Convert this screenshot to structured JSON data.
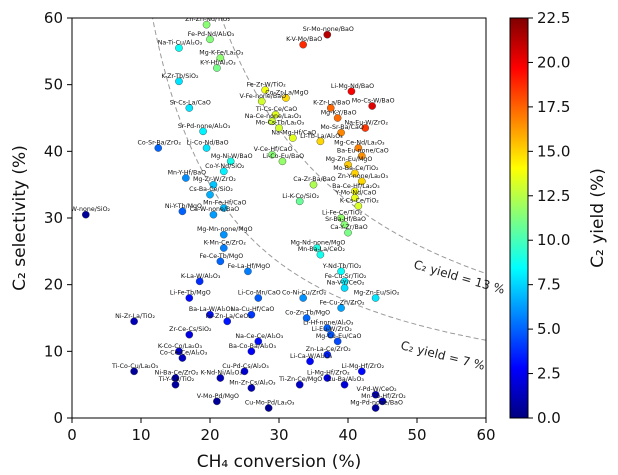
{
  "chart_data": {
    "type": "scatter",
    "xlabel": "CH₄ conversion (%)",
    "ylabel": "C₂ selectivity (%)",
    "xlim": [
      0,
      60
    ],
    "ylim": [
      0,
      60
    ],
    "x_ticks": [
      "0",
      "10",
      "20",
      "30",
      "40",
      "50",
      "60"
    ],
    "y_ticks": [
      "0",
      "10",
      "20",
      "30",
      "40",
      "50",
      "60"
    ],
    "colorbar": {
      "label": "C₂ yield (%)",
      "range": [
        0,
        22.5
      ],
      "ticks": [
        "0.0",
        "2.5",
        "5.0",
        "7.5",
        "10.0",
        "12.5",
        "15.0",
        "17.5",
        "20.0",
        "22.5"
      ],
      "colormap": [
        "#00007f",
        "#0000ff",
        "#007fff",
        "#00ffff",
        "#7fff7f",
        "#ffff00",
        "#ff7f00",
        "#ff0000",
        "#7f0000"
      ]
    },
    "yield_curves": [
      {
        "label": "C₂ yield = 13 %",
        "yield": 13
      },
      {
        "label": "C₂ yield = 7 %",
        "yield": 7
      }
    ],
    "labeled_points": [
      {
        "name": "Zn-Zn-Nd/TiO₂",
        "x": 19.5,
        "y": 59
      },
      {
        "name": "Fe-Pd-Nd/Al₂O₃",
        "x": 20,
        "y": 56.8
      },
      {
        "name": "Na-Ti-Cu/Al₂O₃",
        "x": 15.5,
        "y": 55.5
      },
      {
        "name": "Mg-K-Fe/La₂O₃",
        "x": 21.5,
        "y": 54
      },
      {
        "name": "Sr-Mo-none/BaO",
        "x": 37,
        "y": 57.5
      },
      {
        "name": "K-V-Mo/BaO",
        "x": 33.5,
        "y": 56
      },
      {
        "name": "K-Y-Hf/Al₂O₃",
        "x": 21,
        "y": 52.5
      },
      {
        "name": "K-Zr-Tb/SiO₂",
        "x": 15.5,
        "y": 50.5
      },
      {
        "name": "Fe-Zr-W/TiO₂",
        "x": 28,
        "y": 49.2
      },
      {
        "name": "Co-Zr-La/MgO",
        "x": 31,
        "y": 48
      },
      {
        "name": "Li-Mg-Nd/BaO",
        "x": 40.5,
        "y": 49
      },
      {
        "name": "V-Fe-none/BaO",
        "x": 27.5,
        "y": 47.5
      },
      {
        "name": "K-Zr-La/BaO",
        "x": 37.5,
        "y": 46.5
      },
      {
        "name": "Mo-Cs-W/BaO",
        "x": 43.5,
        "y": 46.8
      },
      {
        "name": "Sr-Cs-La/CaO",
        "x": 17,
        "y": 46.5
      },
      {
        "name": "Ti-Cs-Ce/CaO",
        "x": 29.5,
        "y": 45.5
      },
      {
        "name": "Na-Ce-none/La₂O₃",
        "x": 29,
        "y": 44.5
      },
      {
        "name": "Mg-K-Y/BaO",
        "x": 38.5,
        "y": 45
      },
      {
        "name": "Mo-Cs-Tb/La₂O₃",
        "x": 30,
        "y": 43.5
      },
      {
        "name": "Na-Eu-W/ZrO₂",
        "x": 42.5,
        "y": 43.5
      },
      {
        "name": "Sr-Pd-none/Al₂O₃",
        "x": 19,
        "y": 43
      },
      {
        "name": "Mo-Sr-Ba/CaO",
        "x": 39,
        "y": 42.8
      },
      {
        "name": "Na-Mg-Hf/CaO",
        "x": 32,
        "y": 42
      },
      {
        "name": "Li-Tb-La/Al₂O₃",
        "x": 36,
        "y": 41.5
      },
      {
        "name": "Li-Co-Nd/BaO",
        "x": 19.5,
        "y": 40.5
      },
      {
        "name": "Co-Sr-Ba/ZrO₂",
        "x": 12.5,
        "y": 40.5
      },
      {
        "name": "Mg-Ce-Nd/La₂O₃",
        "x": 41.5,
        "y": 40.5
      },
      {
        "name": "V-Ce-Hf/CaO",
        "x": 29,
        "y": 39.5
      },
      {
        "name": "Ba-Eu-none/CaO",
        "x": 42,
        "y": 39.3
      },
      {
        "name": "Mg-Ni-W/BaO",
        "x": 23,
        "y": 38.5
      },
      {
        "name": "Li-Co-Eu/BaO",
        "x": 30.5,
        "y": 38.5
      },
      {
        "name": "Mg-Zn-Eu/MgO",
        "x": 40,
        "y": 38
      },
      {
        "name": "Co-Y-Nd/SiO₂",
        "x": 22,
        "y": 37
      },
      {
        "name": "Mo-Ba-Ce/TiO₂",
        "x": 41,
        "y": 36.7
      },
      {
        "name": "Mn-Y-Hf/BaO",
        "x": 16.5,
        "y": 36
      },
      {
        "name": "Zn-Y-none/La₂O₃",
        "x": 42,
        "y": 35.5
      },
      {
        "name": "Mg-Zr-W/ZrO₂",
        "x": 20.5,
        "y": 35
      },
      {
        "name": "Ca-Zr-Ba/BaO",
        "x": 35,
        "y": 35
      },
      {
        "name": "Ba-Ce-Hf/La₂O₃",
        "x": 41,
        "y": 34
      },
      {
        "name": "Cs-Ba-Ce/SiO₂",
        "x": 20,
        "y": 33.5
      },
      {
        "name": "Li-K-Co/SiO₂",
        "x": 33,
        "y": 32.5
      },
      {
        "name": "Y-Mo-Nd/CaO",
        "x": 41,
        "y": 33
      },
      {
        "name": "K-Cs-Ce/TiO₂",
        "x": 41.5,
        "y": 31.8
      },
      {
        "name": "Mn-Fe-Hf/CaO",
        "x": 22,
        "y": 31.5
      },
      {
        "name": "Ni-Y-Tb/MgO",
        "x": 16,
        "y": 31
      },
      {
        "name": "Ca-W-none/BaO",
        "x": 20.5,
        "y": 30.5
      },
      {
        "name": "Li-W-none/SiO₂",
        "x": 2,
        "y": 30.5
      },
      {
        "name": "Li-Fe-Ce/TiO₂",
        "x": 39,
        "y": 30
      },
      {
        "name": "Sr-Ba-Hf/BaO",
        "x": 39.5,
        "y": 29
      },
      {
        "name": "Ca-Y-Zr/BaO",
        "x": 40,
        "y": 27.8
      },
      {
        "name": "Mg-Mn-none/MgO",
        "x": 22,
        "y": 27.5
      },
      {
        "name": "K-Mn-Ce/ZrO₂",
        "x": 22,
        "y": 25.5
      },
      {
        "name": "Mg-Nd-none/MgO",
        "x": 35.5,
        "y": 25.5
      },
      {
        "name": "Mn-Ba-La/CeO₂",
        "x": 36,
        "y": 24.5
      },
      {
        "name": "Fe-Ce-Tb/MgO",
        "x": 21.5,
        "y": 23.5
      },
      {
        "name": "Fe-La-Hf/MgO",
        "x": 25.5,
        "y": 22
      },
      {
        "name": "Y-Nd-Tb/TiO₂",
        "x": 39,
        "y": 22
      },
      {
        "name": "K-La-W/Al₂O₃",
        "x": 18.5,
        "y": 20.5
      },
      {
        "name": "Fe-Cu-Sr/TiO₂",
        "x": 39.5,
        "y": 20.5
      },
      {
        "name": "Na-V-Y/CeO₂",
        "x": 39.5,
        "y": 19.5
      },
      {
        "name": "Li-Fe-Tb/MgO",
        "x": 17,
        "y": 18
      },
      {
        "name": "Li-Co-Mn/CaO",
        "x": 27,
        "y": 18
      },
      {
        "name": "Co-Ni-Cu/ZrO₂",
        "x": 33.5,
        "y": 18
      },
      {
        "name": "Mg-Zn-Eu/SiO₂",
        "x": 44,
        "y": 18
      },
      {
        "name": "Fe-Cu-Zn/ZrO₂",
        "x": 39,
        "y": 16.5
      },
      {
        "name": "Ba-La-W/Al₂O₃",
        "x": 20,
        "y": 15.5
      },
      {
        "name": "Na-Cu-Hf/CaO",
        "x": 26,
        "y": 15.5
      },
      {
        "name": "Co-Zn-Tb/MgO",
        "x": 34,
        "y": 15
      },
      {
        "name": "Ni-Zr-La/TiO₂",
        "x": 9,
        "y": 14.5
      },
      {
        "name": "Fe-Zn-La/CeO₂",
        "x": 22.5,
        "y": 14.5
      },
      {
        "name": "Li-Hf-none/Al₂O₃",
        "x": 37,
        "y": 13.5
      },
      {
        "name": "Zr-Ce-Cs/SiO₂",
        "x": 17,
        "y": 12.5
      },
      {
        "name": "Li-Eu-W/ZrO₂",
        "x": 37.5,
        "y": 12.5
      },
      {
        "name": "Na-Ce-Ce/Al₂O₃",
        "x": 27,
        "y": 11.5
      },
      {
        "name": "Mg-Cu-Eu/CaO",
        "x": 38.5,
        "y": 11.5
      },
      {
        "name": "K-Co-Co/La₂O₃",
        "x": 15.5,
        "y": 10
      },
      {
        "name": "Co-Ce-Ce/Al₂O₃",
        "x": 16,
        "y": 9
      },
      {
        "name": "Ba-Co-Ba/Al₂O₃",
        "x": 26,
        "y": 10
      },
      {
        "name": "Zn-La-Ce/ZrO₂",
        "x": 37,
        "y": 9.5
      },
      {
        "name": "Li-Ca-W/Al₂O₃",
        "x": 34.5,
        "y": 8.5
      },
      {
        "name": "Ti-Co-Cu/La₂O₃",
        "x": 9,
        "y": 7
      },
      {
        "name": "Cu-Pd-Cs/Al₂O₃",
        "x": 25,
        "y": 7
      },
      {
        "name": "Li-Mg-Hf/ZrO₂",
        "x": 42,
        "y": 7
      },
      {
        "name": "Ni-Ba-Ce/ZrO₂",
        "x": 15,
        "y": 6
      },
      {
        "name": "K-Nd-Ni/Al₂O₃",
        "x": 21.5,
        "y": 6
      },
      {
        "name": "Li-Mg-Hf/ZrO₂",
        "x": 37,
        "y": 6
      },
      {
        "name": "Ti-Y-Ce/TiO₂",
        "x": 15,
        "y": 5
      },
      {
        "name": "Ti-Zn-Ce/MgO",
        "x": 33,
        "y": 5
      },
      {
        "name": "Cu-Ba/Al₂O₃",
        "x": 39.5,
        "y": 5
      },
      {
        "name": "Mn-Zr-Cs/Al₂O₃",
        "x": 26,
        "y": 4.5
      },
      {
        "name": "V-Pd-W/CeO₂",
        "x": 44,
        "y": 3.5
      },
      {
        "name": "V-Mo-Pd/MgO",
        "x": 21,
        "y": 2.5
      },
      {
        "name": "Mn-Tb-Hf/ZrO₂",
        "x": 45,
        "y": 2.5
      },
      {
        "name": "Mg-Pd-none/BaO",
        "x": 44,
        "y": 1.5
      },
      {
        "name": "Cu-Mo-Pd/La₂O₃",
        "x": 28.5,
        "y": 1.5
      }
    ]
  }
}
